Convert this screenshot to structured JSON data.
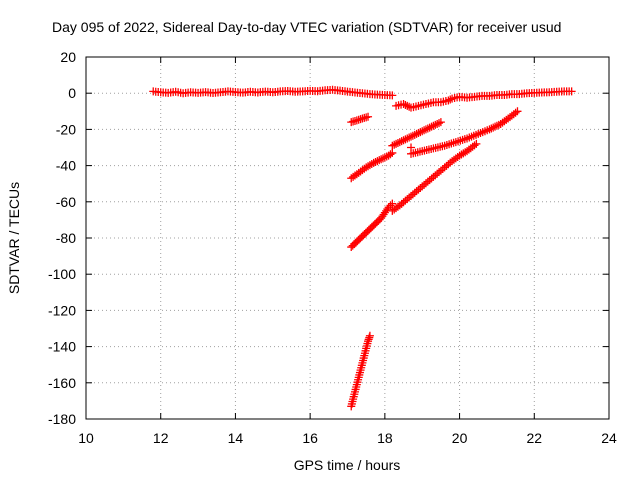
{
  "chart_data": {
    "type": "scatter",
    "title": "Day 095 of 2022, Sidereal Day-to-day VTEC variation (SDTVAR) for receiver usud",
    "xlabel": "GPS time / hours",
    "ylabel": "SDTVAR / TECUs",
    "xlim": [
      10,
      24
    ],
    "ylim": [
      -180,
      20
    ],
    "xticks": [
      "10",
      "12",
      "14",
      "16",
      "18",
      "20",
      "22",
      "24"
    ],
    "yticks": [
      "20",
      "0",
      "-20",
      "-40",
      "-60",
      "-80",
      "-100",
      "-120",
      "-140",
      "-160",
      "-180"
    ],
    "grid": true,
    "marker": "plus",
    "color": "#ff0000",
    "series": [
      {
        "points": [
          [
            11.8,
            1.0
          ],
          [
            12.0,
            0.5
          ],
          [
            12.2,
            0.2
          ],
          [
            12.4,
            0.8
          ],
          [
            12.6,
            0.0
          ],
          [
            12.8,
            0.5
          ],
          [
            13.0,
            0.2
          ],
          [
            13.2,
            0.6
          ],
          [
            13.4,
            0.1
          ],
          [
            13.6,
            0.5
          ],
          [
            13.8,
            1.0
          ],
          [
            14.0,
            0.6
          ],
          [
            14.2,
            0.3
          ],
          [
            14.4,
            0.8
          ],
          [
            14.6,
            0.4
          ],
          [
            14.8,
            0.9
          ],
          [
            15.0,
            0.5
          ],
          [
            15.2,
            1.0
          ],
          [
            15.4,
            1.2
          ],
          [
            15.6,
            0.8
          ],
          [
            15.8,
            1.0
          ],
          [
            16.0,
            1.3
          ],
          [
            16.2,
            1.1
          ],
          [
            16.4,
            1.6
          ],
          [
            16.6,
            1.9
          ],
          [
            16.8,
            1.4
          ],
          [
            17.0,
            0.9
          ],
          [
            17.2,
            0.4
          ],
          [
            17.4,
            0.0
          ],
          [
            17.6,
            -0.5
          ],
          [
            17.8,
            -0.8
          ],
          [
            18.0,
            -1.0
          ],
          [
            18.2,
            -1.2
          ]
        ]
      },
      {
        "points": [
          [
            18.3,
            -7.0
          ],
          [
            18.5,
            -6.0
          ],
          [
            18.7,
            -8.0
          ],
          [
            18.9,
            -7.0
          ],
          [
            19.1,
            -6.0
          ],
          [
            19.3,
            -5.0
          ],
          [
            19.5,
            -5.0
          ],
          [
            19.7,
            -4.0
          ],
          [
            19.8,
            -3.0
          ],
          [
            20.0,
            -2.0
          ],
          [
            20.2,
            -2.5
          ],
          [
            20.4,
            -2.0
          ],
          [
            20.6,
            -1.5
          ],
          [
            20.8,
            -1.5
          ],
          [
            21.0,
            -1.0
          ],
          [
            21.2,
            -1.0
          ],
          [
            21.4,
            -0.5
          ],
          [
            21.6,
            -0.5
          ],
          [
            21.8,
            0.0
          ],
          [
            22.0,
            0.2
          ],
          [
            22.2,
            0.4
          ],
          [
            22.4,
            0.5
          ],
          [
            22.6,
            0.8
          ],
          [
            22.8,
            1.0
          ],
          [
            23.0,
            1.0
          ]
        ]
      },
      {
        "points": [
          [
            17.1,
            -16.0
          ],
          [
            17.25,
            -15.0
          ],
          [
            17.4,
            -14.0
          ],
          [
            17.55,
            -13.0
          ]
        ]
      },
      {
        "points": [
          [
            17.1,
            -47.0
          ],
          [
            17.3,
            -44.0
          ],
          [
            17.5,
            -41.0
          ],
          [
            17.7,
            -38.5
          ],
          [
            17.9,
            -36.5
          ],
          [
            18.1,
            -34.5
          ],
          [
            18.2,
            -33.0
          ]
        ]
      },
      {
        "points": [
          [
            18.2,
            -29.0
          ],
          [
            18.4,
            -27.0
          ],
          [
            18.6,
            -25.0
          ],
          [
            18.8,
            -23.0
          ],
          [
            19.0,
            -21.0
          ],
          [
            19.2,
            -19.0
          ],
          [
            19.4,
            -17.0
          ],
          [
            19.5,
            -16.0
          ]
        ]
      },
      {
        "points": [
          [
            18.7,
            -30.0
          ]
        ]
      },
      {
        "points": [
          [
            18.7,
            -33.5
          ],
          [
            19.0,
            -32.0
          ],
          [
            19.3,
            -30.5
          ],
          [
            19.6,
            -29.0
          ],
          [
            19.9,
            -27.0
          ],
          [
            20.2,
            -25.0
          ],
          [
            20.5,
            -22.5
          ],
          [
            20.8,
            -20.0
          ],
          [
            21.1,
            -17.0
          ],
          [
            21.3,
            -14.0
          ],
          [
            21.55,
            -10.0
          ]
        ]
      },
      {
        "points": [
          [
            17.1,
            -85.0
          ],
          [
            17.3,
            -81.0
          ],
          [
            17.5,
            -77.0
          ],
          [
            17.7,
            -73.0
          ],
          [
            17.9,
            -69.0
          ],
          [
            18.0,
            -66.0
          ],
          [
            18.1,
            -63.0
          ],
          [
            18.2,
            -61.0
          ]
        ]
      },
      {
        "points": [
          [
            18.2,
            -65.0
          ],
          [
            18.4,
            -62.0
          ],
          [
            18.6,
            -58.5
          ],
          [
            18.8,
            -55.0
          ],
          [
            19.0,
            -51.5
          ],
          [
            19.2,
            -48.0
          ],
          [
            19.4,
            -44.5
          ],
          [
            19.6,
            -41.0
          ],
          [
            19.8,
            -37.5
          ],
          [
            20.0,
            -34.5
          ],
          [
            20.2,
            -32.0
          ],
          [
            20.45,
            -28.0
          ]
        ]
      },
      {
        "points": [
          [
            17.1,
            -173.0
          ],
          [
            17.15,
            -169.0
          ],
          [
            17.2,
            -165.0
          ],
          [
            17.25,
            -161.0
          ],
          [
            17.3,
            -157.0
          ],
          [
            17.35,
            -153.0
          ],
          [
            17.4,
            -149.0
          ],
          [
            17.45,
            -145.0
          ],
          [
            17.5,
            -141.0
          ],
          [
            17.55,
            -137.0
          ],
          [
            17.6,
            -134.0
          ]
        ]
      }
    ]
  }
}
